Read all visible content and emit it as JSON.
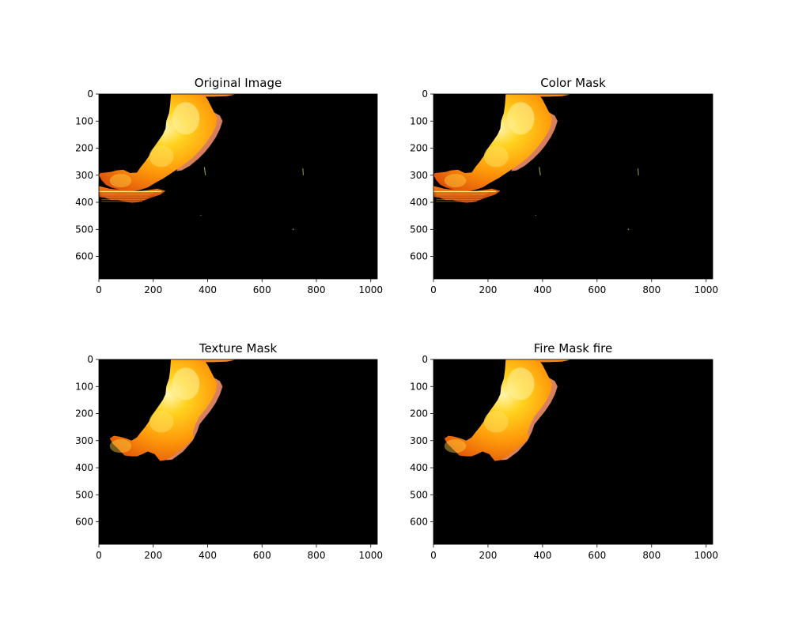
{
  "chart_data": [
    {
      "type": "image",
      "title": "Original Image",
      "xlim": [
        0,
        1024
      ],
      "ylim": [
        683,
        0
      ],
      "xticks": [
        0,
        200,
        400,
        600,
        800,
        1000
      ],
      "yticks": [
        0,
        100,
        200,
        300,
        400,
        500,
        600
      ],
      "background_color": "#000000",
      "shows_stray_pixels": true,
      "shows_reflection_region": true
    },
    {
      "type": "image",
      "title": "Color Mask",
      "xlim": [
        0,
        1024
      ],
      "ylim": [
        683,
        0
      ],
      "xticks": [
        0,
        200,
        400,
        600,
        800,
        1000
      ],
      "yticks": [
        0,
        100,
        200,
        300,
        400,
        500,
        600
      ],
      "background_color": "#000000",
      "shows_stray_pixels": true,
      "shows_reflection_region": true
    },
    {
      "type": "image",
      "title": "Texture Mask",
      "xlim": [
        0,
        1024
      ],
      "ylim": [
        683,
        0
      ],
      "xticks": [
        0,
        200,
        400,
        600,
        800,
        1000
      ],
      "yticks": [
        0,
        100,
        200,
        300,
        400,
        500,
        600
      ],
      "background_color": "#000000",
      "shows_stray_pixels": false,
      "shows_reflection_region": false
    },
    {
      "type": "image",
      "title": "Fire Mask fire",
      "xlim": [
        0,
        1024
      ],
      "ylim": [
        683,
        0
      ],
      "xticks": [
        0,
        200,
        400,
        600,
        800,
        1000
      ],
      "yticks": [
        0,
        100,
        200,
        300,
        400,
        500,
        600
      ],
      "background_color": "#000000",
      "shows_stray_pixels": false,
      "shows_reflection_region": false
    }
  ],
  "colors": {
    "fire_core": "#fff4a0",
    "fire_bright": "#ffd21e",
    "fire_mid": "#ff9a0a",
    "fire_dark": "#e0520a",
    "smoke": "#e08060",
    "background": "#000000"
  }
}
